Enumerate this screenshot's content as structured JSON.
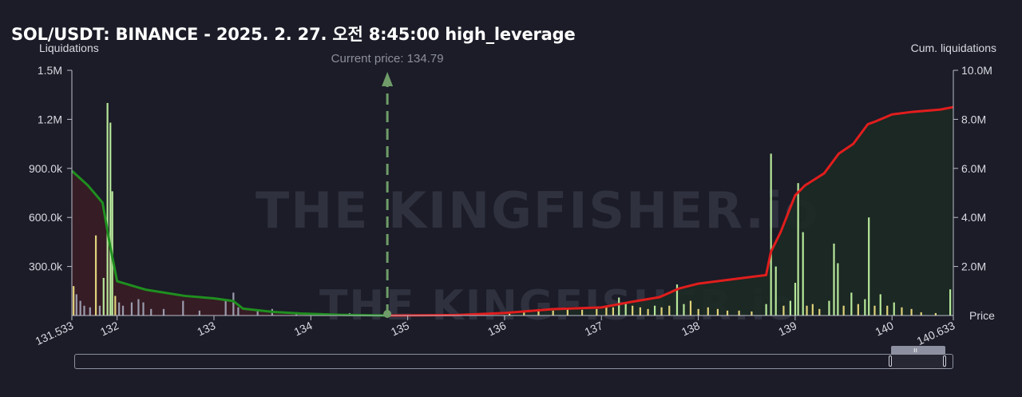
{
  "title": "SOL/USDT: BINANCE - 2025. 2. 27. 오전 8:45:00 high_leverage",
  "labels": {
    "left_axis": "Liquidations",
    "right_axis": "Cum. liquidations",
    "x_axis": "Price",
    "current_price": "Current price: 134.79",
    "watermark": "THE KINGFISHER.io"
  },
  "colors": {
    "background": "#1b1c27",
    "short_cum_line": "#1f8f1f",
    "long_cum_line": "#e11d1d",
    "short_fill": "#3a1d26",
    "long_fill": "#1c2a24",
    "bar_green": "#b7e79a",
    "bar_yellow": "#e0d27a",
    "bar_grey": "#9a9cad",
    "current_price_line": "#6f9c69"
  },
  "chart_data": {
    "type": "bar",
    "title": "SOL/USDT: BINANCE - 2025. 2. 27. 오전 8:45:00 high_leverage",
    "xlabel": "Price",
    "ylabel": "Liquidations",
    "y2label": "Cum. liquidations",
    "xlim": [
      131.533,
      140.633
    ],
    "ylim": [
      0,
      1500000
    ],
    "y2lim": [
      0,
      10000000
    ],
    "x_ticks": [
      "131.533",
      "132",
      "133",
      "134",
      "135",
      "136",
      "137",
      "138",
      "139",
      "140",
      "140.633"
    ],
    "x_tick_values": [
      131.533,
      132,
      133,
      134,
      135,
      136,
      137,
      138,
      139,
      140,
      140.633
    ],
    "y_ticks": [
      "1.5M",
      "1.2M",
      "900.0k",
      "600.0k",
      "300.0k"
    ],
    "y_tick_values": [
      1500000,
      1200000,
      900000,
      600000,
      300000
    ],
    "y2_ticks": [
      "10.0M",
      "8.0M",
      "6.0M",
      "4.0M",
      "2.0M"
    ],
    "y2_tick_values": [
      10000000,
      8000000,
      6000000,
      4000000,
      2000000
    ],
    "current_price": 134.79,
    "bars": [
      {
        "x": 131.55,
        "y": 180000,
        "color": "yellow"
      },
      {
        "x": 131.58,
        "y": 130000,
        "color": "grey"
      },
      {
        "x": 131.62,
        "y": 90000,
        "color": "grey"
      },
      {
        "x": 131.66,
        "y": 60000,
        "color": "grey"
      },
      {
        "x": 131.72,
        "y": 50000,
        "color": "grey"
      },
      {
        "x": 131.78,
        "y": 490000,
        "color": "yellow"
      },
      {
        "x": 131.82,
        "y": 60000,
        "color": "grey"
      },
      {
        "x": 131.86,
        "y": 230000,
        "color": "green"
      },
      {
        "x": 131.9,
        "y": 1300000,
        "color": "green"
      },
      {
        "x": 131.93,
        "y": 1180000,
        "color": "green"
      },
      {
        "x": 131.95,
        "y": 760000,
        "color": "green"
      },
      {
        "x": 131.98,
        "y": 120000,
        "color": "yellow"
      },
      {
        "x": 132.02,
        "y": 80000,
        "color": "grey"
      },
      {
        "x": 132.06,
        "y": 60000,
        "color": "grey"
      },
      {
        "x": 132.15,
        "y": 80000,
        "color": "grey"
      },
      {
        "x": 132.22,
        "y": 100000,
        "color": "grey"
      },
      {
        "x": 132.27,
        "y": 80000,
        "color": "grey"
      },
      {
        "x": 132.35,
        "y": 40000,
        "color": "grey"
      },
      {
        "x": 132.48,
        "y": 40000,
        "color": "grey"
      },
      {
        "x": 132.68,
        "y": 90000,
        "color": "grey"
      },
      {
        "x": 132.85,
        "y": 30000,
        "color": "grey"
      },
      {
        "x": 133.12,
        "y": 90000,
        "color": "grey"
      },
      {
        "x": 133.2,
        "y": 140000,
        "color": "grey"
      },
      {
        "x": 133.25,
        "y": 50000,
        "color": "grey"
      },
      {
        "x": 133.45,
        "y": 30000,
        "color": "grey"
      },
      {
        "x": 133.6,
        "y": 40000,
        "color": "grey"
      },
      {
        "x": 133.85,
        "y": 20000,
        "color": "grey"
      },
      {
        "x": 134.1,
        "y": 15000,
        "color": "grey"
      },
      {
        "x": 134.4,
        "y": 15000,
        "color": "grey"
      },
      {
        "x": 136.05,
        "y": 20000,
        "color": "yellow"
      },
      {
        "x": 136.2,
        "y": 30000,
        "color": "yellow"
      },
      {
        "x": 136.35,
        "y": 40000,
        "color": "yellow"
      },
      {
        "x": 136.5,
        "y": 30000,
        "color": "yellow"
      },
      {
        "x": 136.65,
        "y": 45000,
        "color": "yellow"
      },
      {
        "x": 136.8,
        "y": 35000,
        "color": "yellow"
      },
      {
        "x": 136.95,
        "y": 40000,
        "color": "yellow"
      },
      {
        "x": 137.05,
        "y": 60000,
        "color": "yellow"
      },
      {
        "x": 137.12,
        "y": 50000,
        "color": "yellow"
      },
      {
        "x": 137.18,
        "y": 110000,
        "color": "green"
      },
      {
        "x": 137.25,
        "y": 80000,
        "color": "green"
      },
      {
        "x": 137.32,
        "y": 60000,
        "color": "yellow"
      },
      {
        "x": 137.4,
        "y": 50000,
        "color": "yellow"
      },
      {
        "x": 137.48,
        "y": 40000,
        "color": "yellow"
      },
      {
        "x": 137.55,
        "y": 60000,
        "color": "green"
      },
      {
        "x": 137.62,
        "y": 50000,
        "color": "yellow"
      },
      {
        "x": 137.7,
        "y": 60000,
        "color": "yellow"
      },
      {
        "x": 137.78,
        "y": 190000,
        "color": "green"
      },
      {
        "x": 137.85,
        "y": 70000,
        "color": "green"
      },
      {
        "x": 137.92,
        "y": 90000,
        "color": "yellow"
      },
      {
        "x": 138.0,
        "y": 40000,
        "color": "yellow"
      },
      {
        "x": 138.1,
        "y": 50000,
        "color": "yellow"
      },
      {
        "x": 138.2,
        "y": 40000,
        "color": "yellow"
      },
      {
        "x": 138.3,
        "y": 30000,
        "color": "yellow"
      },
      {
        "x": 138.42,
        "y": 30000,
        "color": "yellow"
      },
      {
        "x": 138.55,
        "y": 25000,
        "color": "yellow"
      },
      {
        "x": 138.7,
        "y": 70000,
        "color": "green"
      },
      {
        "x": 138.75,
        "y": 990000,
        "color": "green"
      },
      {
        "x": 138.8,
        "y": 300000,
        "color": "green"
      },
      {
        "x": 138.88,
        "y": 60000,
        "color": "yellow"
      },
      {
        "x": 138.95,
        "y": 90000,
        "color": "green"
      },
      {
        "x": 139.0,
        "y": 200000,
        "color": "green"
      },
      {
        "x": 139.03,
        "y": 810000,
        "color": "green"
      },
      {
        "x": 139.08,
        "y": 510000,
        "color": "green"
      },
      {
        "x": 139.12,
        "y": 60000,
        "color": "yellow"
      },
      {
        "x": 139.18,
        "y": 70000,
        "color": "yellow"
      },
      {
        "x": 139.25,
        "y": 40000,
        "color": "yellow"
      },
      {
        "x": 139.35,
        "y": 90000,
        "color": "green"
      },
      {
        "x": 139.4,
        "y": 440000,
        "color": "green"
      },
      {
        "x": 139.44,
        "y": 320000,
        "color": "green"
      },
      {
        "x": 139.5,
        "y": 60000,
        "color": "yellow"
      },
      {
        "x": 139.58,
        "y": 140000,
        "color": "green"
      },
      {
        "x": 139.65,
        "y": 70000,
        "color": "yellow"
      },
      {
        "x": 139.72,
        "y": 100000,
        "color": "green"
      },
      {
        "x": 139.76,
        "y": 600000,
        "color": "green"
      },
      {
        "x": 139.82,
        "y": 60000,
        "color": "yellow"
      },
      {
        "x": 139.88,
        "y": 130000,
        "color": "green"
      },
      {
        "x": 139.95,
        "y": 60000,
        "color": "yellow"
      },
      {
        "x": 140.02,
        "y": 80000,
        "color": "green"
      },
      {
        "x": 140.1,
        "y": 50000,
        "color": "yellow"
      },
      {
        "x": 140.2,
        "y": 40000,
        "color": "yellow"
      },
      {
        "x": 140.3,
        "y": 20000,
        "color": "yellow"
      },
      {
        "x": 140.45,
        "y": 15000,
        "color": "yellow"
      },
      {
        "x": 140.6,
        "y": 160000,
        "color": "green"
      }
    ],
    "series": [
      {
        "kind": "short_cumulative",
        "color": "#1f8f1f",
        "x": [
          131.533,
          131.7,
          131.85,
          131.93,
          132.0,
          132.3,
          132.7,
          133.0,
          133.2,
          133.3,
          133.6,
          133.9,
          134.3,
          134.79
        ],
        "y": [
          5900000,
          5300000,
          4600000,
          2800000,
          1400000,
          1050000,
          800000,
          700000,
          590000,
          280000,
          150000,
          80000,
          30000,
          0
        ]
      },
      {
        "kind": "long_cumulative",
        "color": "#e11d1d",
        "x": [
          134.79,
          135.5,
          136.0,
          136.5,
          137.0,
          137.3,
          137.6,
          137.8,
          138.0,
          138.5,
          138.7,
          138.75,
          138.85,
          139.0,
          139.1,
          139.3,
          139.45,
          139.6,
          139.75,
          139.82,
          140.0,
          140.2,
          140.5,
          140.633
        ],
        "y": [
          0,
          20000,
          100000,
          260000,
          330000,
          550000,
          750000,
          1100000,
          1300000,
          1550000,
          1650000,
          2600000,
          3400000,
          4900000,
          5300000,
          5800000,
          6600000,
          7000000,
          7800000,
          7900000,
          8200000,
          8300000,
          8400000,
          8500000
        ]
      }
    ],
    "grid": false,
    "legend": "none"
  }
}
